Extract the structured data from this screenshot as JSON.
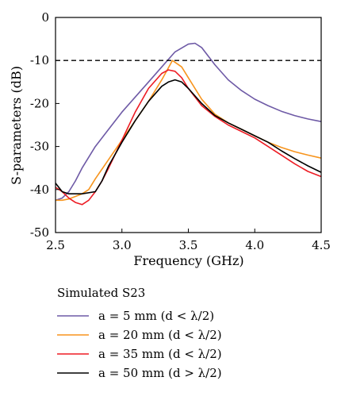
{
  "chart_data": {
    "type": "line",
    "xlabel": "Frequency (GHz)",
    "ylabel": "S-parameters (dB)",
    "xlim": [
      2.5,
      4.5
    ],
    "ylim": [
      -50,
      0
    ],
    "x_ticks": [
      "2.5",
      "3.0",
      "3.5",
      "4.0",
      "4.5"
    ],
    "y_ticks": [
      "0",
      "-10",
      "-20",
      "-30",
      "-40",
      "-50"
    ],
    "x_tick_values": [
      2.5,
      3.0,
      3.5,
      4.0,
      4.5
    ],
    "y_tick_values": [
      0,
      -10,
      -20,
      -30,
      -40,
      -50
    ],
    "grid": false,
    "reference_line": {
      "y": -10,
      "style": "dashed",
      "color": "#000000"
    },
    "legend": {
      "title": "Simulated S23",
      "placement": "below-chart",
      "entries": [
        "a = 5 mm (d < λ/2)",
        "a = 20 mm (d < λ/2)",
        "a = 35 mm (d < λ/2)",
        "a = 50 mm (d > λ/2)"
      ]
    },
    "series": [
      {
        "name": "a = 5 mm (d < λ/2)",
        "color": "#6e5aa6",
        "x": [
          2.5,
          2.55,
          2.6,
          2.65,
          2.7,
          2.8,
          2.9,
          3.0,
          3.1,
          3.2,
          3.3,
          3.4,
          3.5,
          3.55,
          3.6,
          3.7,
          3.8,
          3.9,
          4.0,
          4.1,
          4.2,
          4.3,
          4.4,
          4.5
        ],
        "y": [
          -42.5,
          -42,
          -40.5,
          -38,
          -35,
          -30,
          -26,
          -22,
          -18.5,
          -15,
          -11.5,
          -8,
          -6.2,
          -6,
          -7,
          -11,
          -14.5,
          -17,
          -19,
          -20.5,
          -21.8,
          -22.8,
          -23.6,
          -24.2
        ]
      },
      {
        "name": "a = 20 mm (d < λ/2)",
        "color": "#f7941d",
        "x": [
          2.5,
          2.55,
          2.6,
          2.7,
          2.75,
          2.8,
          2.9,
          3.0,
          3.1,
          3.2,
          3.3,
          3.38,
          3.45,
          3.5,
          3.6,
          3.7,
          3.8,
          3.9,
          4.0,
          4.1,
          4.2,
          4.3,
          4.4,
          4.5
        ],
        "y": [
          -42.5,
          -42.5,
          -42.2,
          -41,
          -40,
          -37.5,
          -33,
          -28.5,
          -24,
          -19.5,
          -14.5,
          -10,
          -11.5,
          -14,
          -19,
          -22.5,
          -24.5,
          -26,
          -27.5,
          -29,
          -30.2,
          -31.2,
          -32,
          -32.7
        ]
      },
      {
        "name": "a = 35 mm (d < λ/2)",
        "color": "#ed1c24",
        "x": [
          2.5,
          2.55,
          2.6,
          2.65,
          2.7,
          2.75,
          2.8,
          2.85,
          2.9,
          3.0,
          3.1,
          3.2,
          3.3,
          3.35,
          3.4,
          3.45,
          3.5,
          3.6,
          3.7,
          3.8,
          3.9,
          4.0,
          4.1,
          4.2,
          4.3,
          4.4,
          4.5
        ],
        "y": [
          -39.5,
          -40.5,
          -42,
          -43,
          -43.5,
          -42.5,
          -40.5,
          -38,
          -35,
          -28.5,
          -22,
          -16.5,
          -13,
          -12.2,
          -12.5,
          -14,
          -16.5,
          -20.5,
          -23,
          -25,
          -26.5,
          -28,
          -30,
          -32,
          -34,
          -35.8,
          -37
        ]
      },
      {
        "name": "a = 50 mm (d > λ/2)",
        "color": "#000000",
        "x": [
          2.5,
          2.55,
          2.6,
          2.65,
          2.7,
          2.8,
          2.85,
          2.9,
          3.0,
          3.1,
          3.2,
          3.3,
          3.35,
          3.4,
          3.45,
          3.5,
          3.6,
          3.7,
          3.8,
          3.9,
          4.0,
          4.1,
          4.2,
          4.3,
          4.4,
          4.5
        ],
        "y": [
          -38.5,
          -40.5,
          -41,
          -41,
          -41,
          -40.5,
          -38,
          -34.5,
          -29,
          -24,
          -19.5,
          -16,
          -15,
          -14.5,
          -15,
          -16.5,
          -20,
          -22.8,
          -24.5,
          -26,
          -27.5,
          -29,
          -31,
          -32.8,
          -34.5,
          -36
        ]
      }
    ]
  }
}
